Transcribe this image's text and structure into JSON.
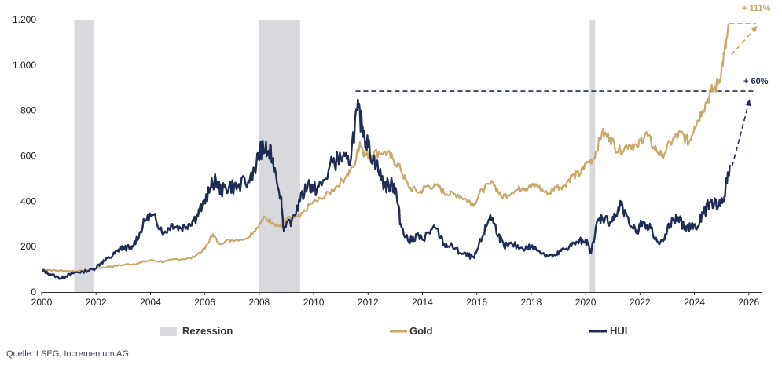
{
  "source_text": "Quelle: LSEG, Incrementum AG",
  "colors": {
    "gold": "#C9A869",
    "hui": "#1F2D55",
    "recession": "#D9D8DC",
    "axis": "#333333"
  },
  "chart_data": {
    "type": "line",
    "title": "",
    "xlabel": "",
    "ylabel": "",
    "xlim": [
      2000,
      2028
    ],
    "ylim": [
      0,
      1200
    ],
    "x_ticks": [
      2000,
      2002,
      2004,
      2006,
      2008,
      2010,
      2012,
      2014,
      2016,
      2018,
      2020,
      2022,
      2024,
      2026
    ],
    "x_tick_labels": [
      "2000",
      "2002",
      "2004",
      "2006",
      "2008",
      "2010",
      "2012",
      "2014",
      "2016",
      "2018",
      "2020",
      "2022",
      "2024",
      "2026"
    ],
    "y_ticks": [
      0,
      200,
      400,
      600,
      800,
      1000,
      1200
    ],
    "y_tick_labels": [
      "0",
      "200",
      "400",
      "600",
      "800",
      "1.000",
      "1.200"
    ],
    "legend": [
      "Rezession",
      "Gold",
      "HUI"
    ],
    "legend_position": "bottom",
    "recessions": [
      {
        "name": "Rezession",
        "start": 2001.2,
        "end": 2001.9
      },
      {
        "name": "Rezession",
        "start": 2008.0,
        "end": 2009.5
      },
      {
        "name": "Rezession",
        "start": 2020.15,
        "end": 2020.35
      }
    ],
    "series": [
      {
        "name": "Gold",
        "points": [
          [
            2000.0,
            100
          ],
          [
            2000.5,
            95
          ],
          [
            2001.0,
            93
          ],
          [
            2001.5,
            92
          ],
          [
            2002.0,
            104
          ],
          [
            2002.5,
            112
          ],
          [
            2003.0,
            120
          ],
          [
            2003.5,
            125
          ],
          [
            2004.0,
            140
          ],
          [
            2004.5,
            133
          ],
          [
            2005.0,
            145
          ],
          [
            2005.5,
            148
          ],
          [
            2006.0,
            190
          ],
          [
            2006.3,
            255
          ],
          [
            2006.5,
            215
          ],
          [
            2007.0,
            230
          ],
          [
            2007.5,
            235
          ],
          [
            2007.9,
            280
          ],
          [
            2008.2,
            330
          ],
          [
            2008.5,
            305
          ],
          [
            2008.8,
            285
          ],
          [
            2009.0,
            320
          ],
          [
            2009.5,
            330
          ],
          [
            2009.9,
            390
          ],
          [
            2010.3,
            410
          ],
          [
            2010.8,
            460
          ],
          [
            2011.2,
            510
          ],
          [
            2011.5,
            560
          ],
          [
            2011.7,
            660
          ],
          [
            2011.9,
            600
          ],
          [
            2012.2,
            610
          ],
          [
            2012.6,
            620
          ],
          [
            2012.9,
            590
          ],
          [
            2013.2,
            540
          ],
          [
            2013.5,
            460
          ],
          [
            2013.9,
            440
          ],
          [
            2014.2,
            470
          ],
          [
            2014.6,
            460
          ],
          [
            2014.9,
            430
          ],
          [
            2015.3,
            430
          ],
          [
            2015.7,
            400
          ],
          [
            2015.9,
            390
          ],
          [
            2016.2,
            450
          ],
          [
            2016.6,
            480
          ],
          [
            2016.9,
            420
          ],
          [
            2017.3,
            440
          ],
          [
            2017.7,
            460
          ],
          [
            2017.9,
            460
          ],
          [
            2018.2,
            470
          ],
          [
            2018.6,
            430
          ],
          [
            2018.9,
            460
          ],
          [
            2019.2,
            470
          ],
          [
            2019.5,
            510
          ],
          [
            2019.8,
            520
          ],
          [
            2020.0,
            560
          ],
          [
            2020.3,
            590
          ],
          [
            2020.6,
            700
          ],
          [
            2020.9,
            680
          ],
          [
            2021.2,
            620
          ],
          [
            2021.6,
            650
          ],
          [
            2021.9,
            640
          ],
          [
            2022.2,
            700
          ],
          [
            2022.5,
            640
          ],
          [
            2022.8,
            600
          ],
          [
            2023.2,
            670
          ],
          [
            2023.5,
            700
          ],
          [
            2023.8,
            660
          ],
          [
            2024.0,
            730
          ],
          [
            2024.3,
            800
          ],
          [
            2024.6,
            880
          ],
          [
            2024.9,
            920
          ],
          [
            2025.1,
            1050
          ],
          [
            2025.3,
            1180
          ]
        ]
      },
      {
        "name": "HUI",
        "points": [
          [
            2000.0,
            95
          ],
          [
            2000.3,
            80
          ],
          [
            2000.7,
            60
          ],
          [
            2000.9,
            70
          ],
          [
            2001.2,
            85
          ],
          [
            2001.5,
            90
          ],
          [
            2001.9,
            100
          ],
          [
            2002.2,
            130
          ],
          [
            2002.5,
            150
          ],
          [
            2002.8,
            180
          ],
          [
            2003.0,
            200
          ],
          [
            2003.3,
            190
          ],
          [
            2003.6,
            260
          ],
          [
            2003.9,
            340
          ],
          [
            2004.2,
            320
          ],
          [
            2004.5,
            260
          ],
          [
            2004.8,
            300
          ],
          [
            2005.1,
            280
          ],
          [
            2005.4,
            300
          ],
          [
            2005.7,
            330
          ],
          [
            2005.9,
            380
          ],
          [
            2006.2,
            460
          ],
          [
            2006.4,
            500
          ],
          [
            2006.6,
            440
          ],
          [
            2006.9,
            470
          ],
          [
            2007.2,
            460
          ],
          [
            2007.6,
            490
          ],
          [
            2007.9,
            570
          ],
          [
            2008.1,
            640
          ],
          [
            2008.3,
            620
          ],
          [
            2008.5,
            590
          ],
          [
            2008.8,
            420
          ],
          [
            2008.9,
            270
          ],
          [
            2009.2,
            320
          ],
          [
            2009.5,
            400
          ],
          [
            2009.8,
            480
          ],
          [
            2010.0,
            450
          ],
          [
            2010.3,
            470
          ],
          [
            2010.7,
            570
          ],
          [
            2011.0,
            590
          ],
          [
            2011.3,
            560
          ],
          [
            2011.6,
            800
          ],
          [
            2011.8,
            730
          ],
          [
            2012.0,
            640
          ],
          [
            2012.3,
            560
          ],
          [
            2012.6,
            470
          ],
          [
            2012.9,
            470
          ],
          [
            2013.0,
            460
          ],
          [
            2013.2,
            300
          ],
          [
            2013.5,
            220
          ],
          [
            2013.8,
            250
          ],
          [
            2014.0,
            230
          ],
          [
            2014.2,
            260
          ],
          [
            2014.5,
            280
          ],
          [
            2014.8,
            210
          ],
          [
            2015.1,
            200
          ],
          [
            2015.4,
            170
          ],
          [
            2015.7,
            160
          ],
          [
            2015.9,
            150
          ],
          [
            2016.2,
            240
          ],
          [
            2016.5,
            340
          ],
          [
            2016.8,
            250
          ],
          [
            2017.0,
            200
          ],
          [
            2017.3,
            210
          ],
          [
            2017.7,
            190
          ],
          [
            2018.0,
            200
          ],
          [
            2018.3,
            180
          ],
          [
            2018.6,
            160
          ],
          [
            2018.9,
            160
          ],
          [
            2019.1,
            180
          ],
          [
            2019.4,
            200
          ],
          [
            2019.7,
            220
          ],
          [
            2020.0,
            230
          ],
          [
            2020.2,
            170
          ],
          [
            2020.4,
            300
          ],
          [
            2020.6,
            330
          ],
          [
            2020.9,
            310
          ],
          [
            2021.1,
            330
          ],
          [
            2021.3,
            380
          ],
          [
            2021.6,
            300
          ],
          [
            2021.9,
            270
          ],
          [
            2022.1,
            310
          ],
          [
            2022.4,
            280
          ],
          [
            2022.7,
            210
          ],
          [
            2022.9,
            230
          ],
          [
            2023.1,
            300
          ],
          [
            2023.4,
            330
          ],
          [
            2023.7,
            270
          ],
          [
            2023.9,
            300
          ],
          [
            2024.1,
            280
          ],
          [
            2024.3,
            340
          ],
          [
            2024.6,
            400
          ],
          [
            2024.9,
            380
          ],
          [
            2025.1,
            420
          ],
          [
            2025.3,
            560
          ]
        ]
      }
    ],
    "annotations": [
      {
        "text": "+ 111%",
        "series": "Gold"
      },
      {
        "text": "+ 60%",
        "series": "HUI"
      }
    ]
  }
}
